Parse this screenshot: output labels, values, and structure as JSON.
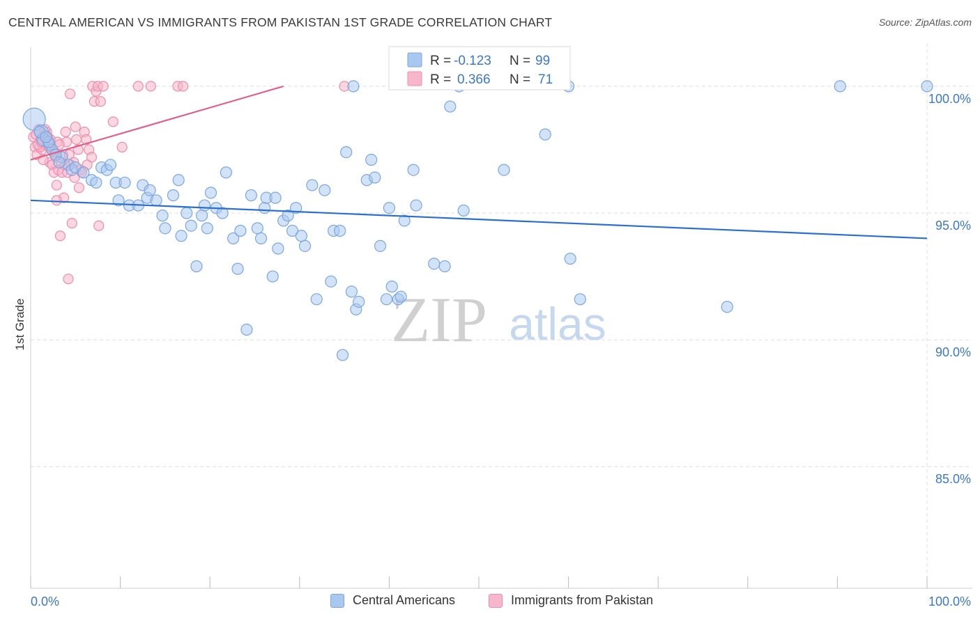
{
  "header": {
    "title": "CENTRAL AMERICAN VS IMMIGRANTS FROM PAKISTAN 1ST GRADE CORRELATION CHART",
    "source": "Source: ZipAtlas.com"
  },
  "watermark": {
    "zip": "ZIP",
    "atlas": "atlas"
  },
  "colors": {
    "blue_fill": "#a8c8f0",
    "blue_stroke": "#7aa6e0",
    "blue_line": "#2a6fcf",
    "pink_fill": "#f7b6cb",
    "pink_stroke": "#f08cab",
    "pink_line": "#e0608a",
    "axis_text": "#3a78c8",
    "grid": "#dddddd"
  },
  "legend": {
    "rows": [
      {
        "r_label": "R = ",
        "r_value": "-0.123",
        "n_label": "N = ",
        "n_value": "99"
      },
      {
        "r_label": "R = ",
        "r_value": "0.366",
        "n_label": "N = ",
        "n_value": "71"
      }
    ]
  },
  "bottom_legend": [
    "Central Americans",
    "Immigrants from Pakistan"
  ],
  "chart_data": {
    "type": "scatter",
    "title": "CENTRAL AMERICAN VS IMMIGRANTS FROM PAKISTAN 1ST GRADE CORRELATION CHART",
    "xlabel": "",
    "ylabel": "1st Grade",
    "xlim": [
      0,
      100
    ],
    "ylim": [
      80.2,
      101.7
    ],
    "x_tick_labels": [
      "0.0%",
      "100.0%"
    ],
    "y_ticks": [
      85,
      90,
      95,
      100
    ],
    "y_tick_labels": [
      "85.0%",
      "90.0%",
      "95.0%",
      "100.0%"
    ],
    "grid": true,
    "legend_position": "top-center",
    "series": [
      {
        "name": "Central Americans",
        "stats": {
          "R": -0.123,
          "N": 99
        },
        "trend": [
          [
            0,
            95.5
          ],
          [
            100,
            94.0
          ]
        ],
        "points": [
          [
            0.4,
            98.7,
            16
          ],
          [
            1.2,
            98.2,
            10
          ],
          [
            1.4,
            97.9,
            9
          ],
          [
            2.1,
            97.7,
            8
          ],
          [
            2.4,
            97.5,
            8
          ],
          [
            3.5,
            97.2,
            8
          ],
          [
            4.2,
            96.9,
            8
          ],
          [
            4.6,
            96.7,
            8
          ],
          [
            5.0,
            96.8,
            8
          ],
          [
            5.9,
            96.6,
            8
          ],
          [
            6.8,
            96.3,
            8
          ],
          [
            7.3,
            96.2,
            8
          ],
          [
            7.9,
            96.8,
            8
          ],
          [
            8.5,
            96.7,
            8
          ],
          [
            8.9,
            96.9,
            8
          ],
          [
            9.5,
            96.2,
            8
          ],
          [
            10.5,
            96.2,
            8
          ],
          [
            9.8,
            95.5,
            8
          ],
          [
            11.0,
            95.3,
            8
          ],
          [
            12.0,
            95.3,
            8
          ],
          [
            12.5,
            96.1,
            8
          ],
          [
            13.0,
            95.6,
            8
          ],
          [
            13.3,
            95.9,
            8
          ],
          [
            14.0,
            95.5,
            8
          ],
          [
            14.7,
            94.9,
            8
          ],
          [
            15.0,
            94.4,
            8
          ],
          [
            15.9,
            95.7,
            8
          ],
          [
            16.5,
            96.3,
            8
          ],
          [
            16.8,
            94.1,
            8
          ],
          [
            17.4,
            95.0,
            8
          ],
          [
            17.9,
            94.5,
            8
          ],
          [
            18.5,
            92.9,
            8
          ],
          [
            19.1,
            94.9,
            8
          ],
          [
            19.4,
            95.3,
            8
          ],
          [
            19.7,
            94.4,
            8
          ],
          [
            20.1,
            95.8,
            8
          ],
          [
            20.7,
            95.2,
            8
          ],
          [
            21.4,
            95.0,
            8
          ],
          [
            21.8,
            96.6,
            8
          ],
          [
            22.6,
            94.0,
            8
          ],
          [
            23.1,
            92.8,
            8
          ],
          [
            23.4,
            94.3,
            8
          ],
          [
            24.1,
            90.4,
            8
          ],
          [
            24.6,
            95.7,
            8
          ],
          [
            25.3,
            94.4,
            8
          ],
          [
            25.7,
            94.0,
            8
          ],
          [
            26.1,
            95.2,
            8
          ],
          [
            26.3,
            95.6,
            8
          ],
          [
            27.0,
            92.5,
            8
          ],
          [
            27.3,
            95.6,
            8
          ],
          [
            27.6,
            93.6,
            8
          ],
          [
            28.2,
            94.7,
            8
          ],
          [
            28.7,
            94.9,
            8
          ],
          [
            29.2,
            94.3,
            8
          ],
          [
            29.6,
            95.2,
            8
          ],
          [
            30.2,
            94.1,
            8
          ],
          [
            30.6,
            93.7,
            8
          ],
          [
            31.4,
            96.1,
            8
          ],
          [
            31.9,
            91.6,
            8
          ],
          [
            32.8,
            95.9,
            8
          ],
          [
            33.5,
            92.3,
            8
          ],
          [
            33.8,
            94.3,
            8
          ],
          [
            34.5,
            94.3,
            8
          ],
          [
            34.8,
            89.4,
            8
          ],
          [
            35.2,
            97.4,
            8
          ],
          [
            35.8,
            91.9,
            8
          ],
          [
            36.3,
            91.2,
            8
          ],
          [
            36.6,
            91.5,
            8
          ],
          [
            37.5,
            96.3,
            8
          ],
          [
            38.0,
            97.1,
            8
          ],
          [
            38.4,
            96.4,
            8
          ],
          [
            39.0,
            93.7,
            8
          ],
          [
            39.7,
            91.6,
            8
          ],
          [
            40.0,
            95.2,
            8
          ],
          [
            40.3,
            92.1,
            8
          ],
          [
            41.0,
            91.6,
            8
          ],
          [
            41.3,
            91.7,
            8
          ],
          [
            41.7,
            94.7,
            8
          ],
          [
            42.7,
            96.7,
            8
          ],
          [
            43.0,
            95.3,
            8
          ],
          [
            45.0,
            93.0,
            8
          ],
          [
            46.2,
            92.9,
            8
          ],
          [
            48.3,
            95.1,
            8
          ],
          [
            36.0,
            100.0,
            8
          ],
          [
            47.8,
            100.0,
            8
          ],
          [
            46.8,
            99.2,
            8
          ],
          [
            52.8,
            96.7,
            8
          ],
          [
            57.4,
            98.1,
            8
          ],
          [
            60.0,
            100.0,
            8
          ],
          [
            60.2,
            93.2,
            8
          ],
          [
            61.3,
            91.6,
            8
          ],
          [
            77.7,
            91.3,
            8
          ],
          [
            90.3,
            100.0,
            8
          ],
          [
            100.0,
            100.0,
            8
          ],
          [
            1.0,
            98.2,
            8
          ],
          [
            2.8,
            97.3,
            8
          ],
          [
            3.2,
            97.0,
            8
          ],
          [
            2.0,
            97.8,
            8
          ],
          [
            1.7,
            98.0,
            8
          ]
        ]
      },
      {
        "name": "Immigrants from Pakistan",
        "stats": {
          "R": 0.366,
          "N": 71
        },
        "trend": [
          [
            0,
            97.1
          ],
          [
            28.2,
            100.0
          ]
        ],
        "points": [
          [
            0.3,
            98.0,
            7
          ],
          [
            0.5,
            97.6,
            7
          ],
          [
            0.7,
            97.3,
            7
          ],
          [
            0.9,
            98.3,
            7
          ],
          [
            1.1,
            97.9,
            7
          ],
          [
            1.3,
            97.5,
            7
          ],
          [
            1.5,
            98.1,
            7
          ],
          [
            1.6,
            97.7,
            7
          ],
          [
            1.8,
            98.2,
            7
          ],
          [
            2.0,
            97.6,
            7
          ],
          [
            2.1,
            97.0,
            7
          ],
          [
            2.2,
            97.9,
            7
          ],
          [
            2.4,
            96.9,
            7
          ],
          [
            2.5,
            97.4,
            7
          ],
          [
            2.6,
            96.6,
            7
          ],
          [
            2.8,
            97.2,
            7
          ],
          [
            2.9,
            96.1,
            7
          ],
          [
            3.0,
            97.8,
            7
          ],
          [
            3.1,
            96.7,
            7
          ],
          [
            3.3,
            94.1,
            7
          ],
          [
            3.4,
            97.0,
            7
          ],
          [
            3.5,
            96.6,
            7
          ],
          [
            3.6,
            97.3,
            7
          ],
          [
            3.7,
            95.6,
            7
          ],
          [
            3.8,
            96.9,
            7
          ],
          [
            3.9,
            98.2,
            7
          ],
          [
            4.0,
            97.8,
            7
          ],
          [
            4.2,
            92.4,
            7
          ],
          [
            4.3,
            97.3,
            7
          ],
          [
            4.4,
            99.7,
            7
          ],
          [
            4.5,
            96.9,
            7
          ],
          [
            4.6,
            94.6,
            7
          ],
          [
            4.8,
            97.0,
            7
          ],
          [
            4.9,
            96.4,
            7
          ],
          [
            5.0,
            98.4,
            7
          ],
          [
            5.1,
            97.9,
            7
          ],
          [
            5.3,
            97.5,
            7
          ],
          [
            5.4,
            96.0,
            7
          ],
          [
            5.6,
            96.7,
            7
          ],
          [
            6.0,
            98.2,
            7
          ],
          [
            6.2,
            97.9,
            7
          ],
          [
            6.5,
            97.5,
            7
          ],
          [
            6.8,
            97.2,
            7
          ],
          [
            6.9,
            100.0,
            7
          ],
          [
            7.1,
            99.4,
            7
          ],
          [
            7.3,
            99.8,
            7
          ],
          [
            7.5,
            100.0,
            7
          ],
          [
            7.6,
            94.5,
            7
          ],
          [
            7.8,
            99.4,
            7
          ],
          [
            8.1,
            100.0,
            7
          ],
          [
            9.2,
            98.6,
            7
          ],
          [
            10.2,
            97.6,
            7
          ],
          [
            12.0,
            100.0,
            7
          ],
          [
            13.4,
            100.0,
            7
          ],
          [
            16.4,
            100.0,
            7
          ],
          [
            17.0,
            100.0,
            7
          ],
          [
            35.0,
            100.0,
            7
          ],
          [
            1.0,
            97.6,
            7
          ],
          [
            1.4,
            97.1,
            7
          ],
          [
            1.9,
            98.0,
            7
          ],
          [
            0.6,
            98.1,
            7
          ],
          [
            0.8,
            97.7,
            7
          ],
          [
            1.2,
            97.8,
            7
          ],
          [
            2.3,
            97.6,
            7
          ],
          [
            2.7,
            97.4,
            7
          ],
          [
            3.2,
            97.7,
            7
          ],
          [
            4.1,
            96.6,
            7
          ],
          [
            5.7,
            96.6,
            7
          ],
          [
            6.3,
            96.9,
            7
          ],
          [
            2.9,
            95.5,
            7
          ],
          [
            1.6,
            98.3,
            7
          ]
        ]
      }
    ]
  }
}
